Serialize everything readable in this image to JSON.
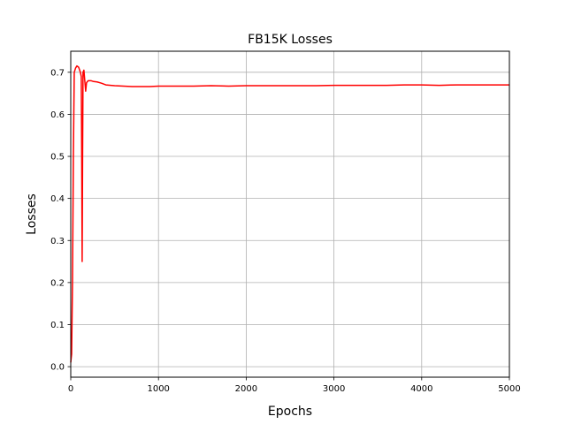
{
  "chart_data": {
    "type": "line",
    "title": "FB15K Losses",
    "xlabel": "Epochs",
    "ylabel": "Losses",
    "xlim": [
      0,
      5000
    ],
    "ylim": [
      -0.025,
      0.75
    ],
    "xticks": [
      0,
      1000,
      2000,
      3000,
      4000,
      5000
    ],
    "yticks": [
      0.0,
      0.1,
      0.2,
      0.3,
      0.4,
      0.5,
      0.6,
      0.7
    ],
    "grid": true,
    "colors": {
      "line": "#ff0000"
    },
    "series": [
      {
        "x": [
          0,
          10,
          20,
          30,
          40,
          55,
          70,
          90,
          110,
          120,
          125,
          130,
          135,
          140,
          150,
          160,
          170,
          180,
          190,
          200,
          230,
          260,
          300,
          350,
          400,
          500,
          600,
          700,
          800,
          900,
          1000,
          1200,
          1400,
          1600,
          1800,
          2000,
          2200,
          2400,
          2600,
          2800,
          3000,
          3200,
          3400,
          3600,
          3800,
          4000,
          4200,
          4400,
          4600,
          4800,
          5000
        ],
        "y": [
          0.01,
          0.03,
          0.2,
          0.5,
          0.7,
          0.71,
          0.715,
          0.712,
          0.7,
          0.69,
          0.5,
          0.25,
          0.5,
          0.7,
          0.705,
          0.68,
          0.655,
          0.675,
          0.678,
          0.68,
          0.68,
          0.678,
          0.677,
          0.674,
          0.67,
          0.668,
          0.667,
          0.666,
          0.666,
          0.666,
          0.667,
          0.667,
          0.667,
          0.668,
          0.667,
          0.668,
          0.668,
          0.668,
          0.668,
          0.668,
          0.669,
          0.669,
          0.669,
          0.669,
          0.67,
          0.67,
          0.669,
          0.67,
          0.67,
          0.67,
          0.67
        ]
      }
    ]
  }
}
